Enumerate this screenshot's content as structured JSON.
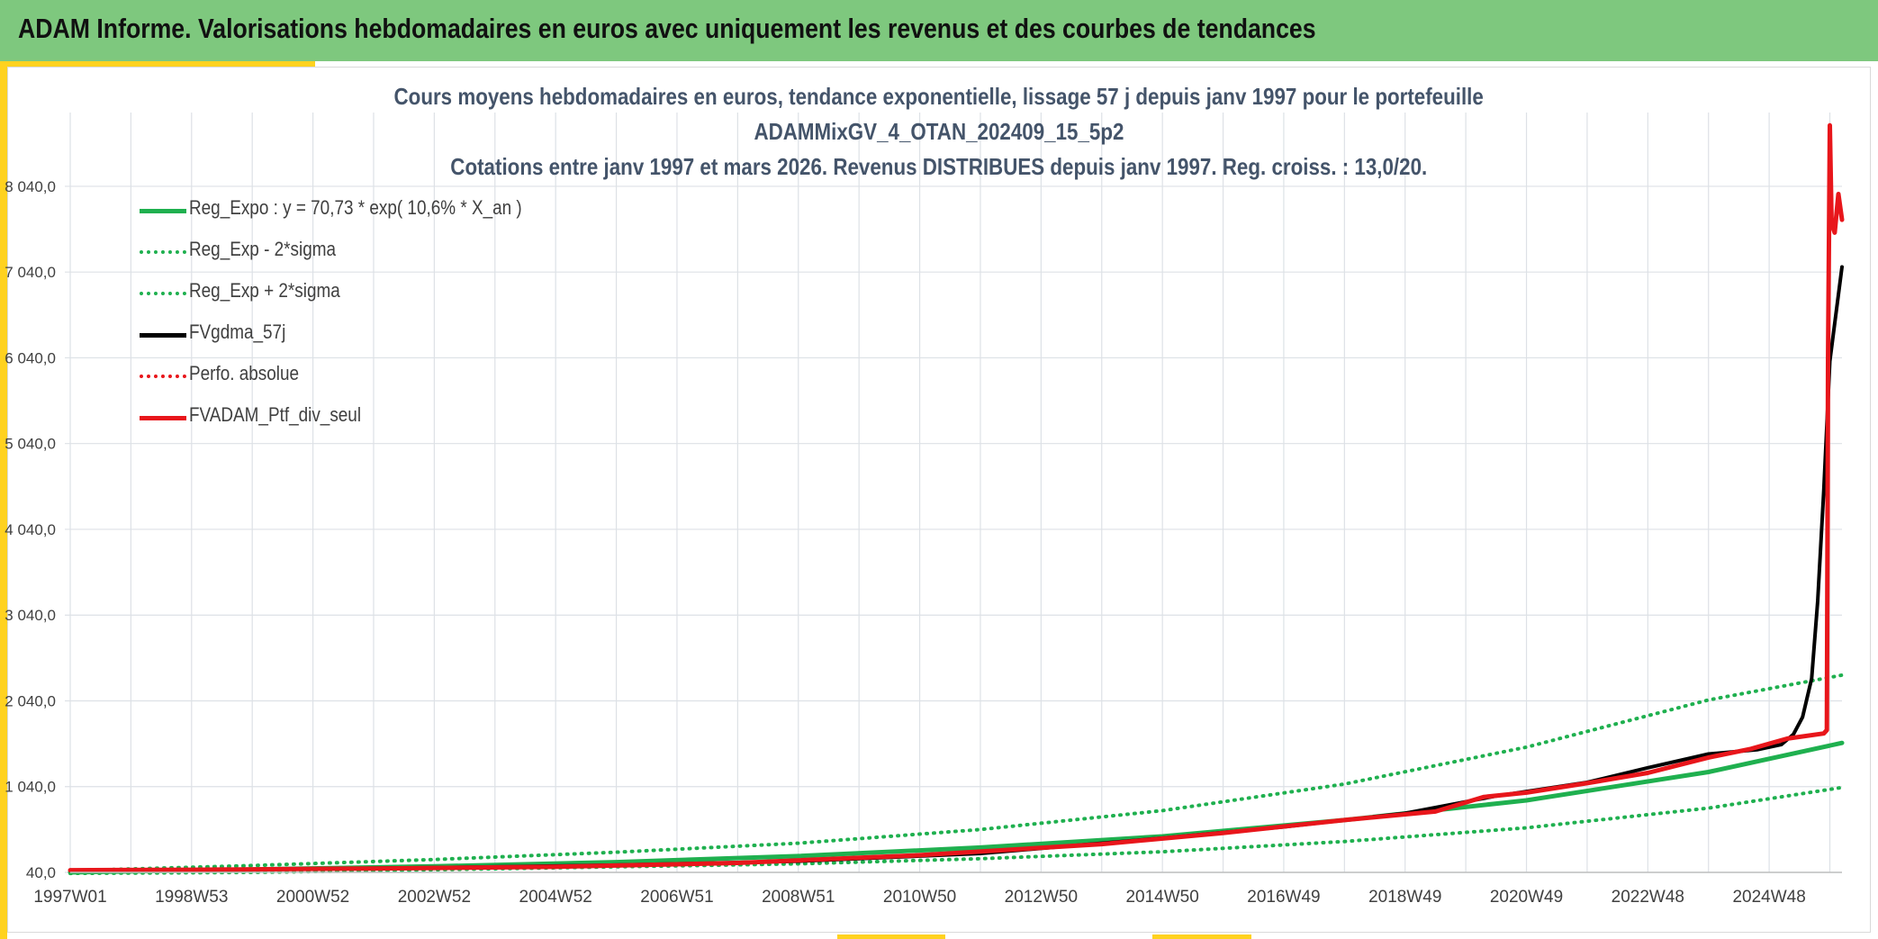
{
  "header": {
    "title": "ADAM Informe. Valorisations hebdomadaires en euros avec uniquement les revenus et des courbes de tendances"
  },
  "chart_data": {
    "type": "line",
    "title_lines": [
      "Cours moyens hebdomadaires en euros, tendance exponentielle, lissage 57 j depuis janv 1997 pour le portefeuille",
      "ADAMMixGV_4_OTAN_202409_15_5p2",
      "Cotations entre janv 1997 et mars 2026. Revenus DISTRIBUES depuis janv 1997. Reg. croiss. : 13,0/20."
    ],
    "xlabel": "",
    "ylabel": "",
    "x_range": [
      1997.0,
      2026.2
    ],
    "ylim": [
      40,
      8900
    ],
    "y_ticks": [
      {
        "value": 40,
        "label": "40,0"
      },
      {
        "value": 1040,
        "label": "1 040,0"
      },
      {
        "value": 2040,
        "label": "2 040,0"
      },
      {
        "value": 3040,
        "label": "3 040,0"
      },
      {
        "value": 4040,
        "label": "4 040,0"
      },
      {
        "value": 5040,
        "label": "5 040,0"
      },
      {
        "value": 6040,
        "label": "6 040,0"
      },
      {
        "value": 7040,
        "label": "7 040,0"
      },
      {
        "value": 8040,
        "label": "8 040,0"
      }
    ],
    "x_ticks": [
      {
        "value": 1997.0,
        "label": "1997W01"
      },
      {
        "value": 1999.0,
        "label": "1998W53"
      },
      {
        "value": 2001.0,
        "label": "2000W52"
      },
      {
        "value": 2003.0,
        "label": "2002W52"
      },
      {
        "value": 2005.0,
        "label": "2004W52"
      },
      {
        "value": 2007.0,
        "label": "2006W51"
      },
      {
        "value": 2009.0,
        "label": "2008W51"
      },
      {
        "value": 2011.0,
        "label": "2010W50"
      },
      {
        "value": 2013.0,
        "label": "2012W50"
      },
      {
        "value": 2015.0,
        "label": "2014W50"
      },
      {
        "value": 2017.0,
        "label": "2016W49"
      },
      {
        "value": 2019.0,
        "label": "2018W49"
      },
      {
        "value": 2021.0,
        "label": "2020W49"
      },
      {
        "value": 2023.0,
        "label": "2022W48"
      },
      {
        "value": 2025.0,
        "label": "2024W48"
      }
    ],
    "minor_grid_step_years": 1,
    "series": [
      {
        "name": "Reg_Exp - 2*sigma",
        "color": "#1fb04f",
        "style": "dotted",
        "points": [
          [
            1997,
            28
          ],
          [
            2000,
            40
          ],
          [
            2003,
            70
          ],
          [
            2006,
            105
          ],
          [
            2009,
            140
          ],
          [
            2012,
            200
          ],
          [
            2015,
            280
          ],
          [
            2018,
            400
          ],
          [
            2021,
            560
          ],
          [
            2024,
            790
          ],
          [
            2026.2,
            1030
          ]
        ]
      },
      {
        "name": "Reg_Exp + 2*sigma",
        "color": "#1fb04f",
        "style": "dotted",
        "points": [
          [
            1997,
            60
          ],
          [
            2000,
            120
          ],
          [
            2003,
            190
          ],
          [
            2006,
            275
          ],
          [
            2009,
            380
          ],
          [
            2012,
            540
          ],
          [
            2015,
            760
          ],
          [
            2018,
            1070
          ],
          [
            2021,
            1500
          ],
          [
            2024,
            2050
          ],
          [
            2026.2,
            2340
          ]
        ]
      },
      {
        "name": "Reg_Expo : y = 70,73 * exp( 10,6% *  X_an )",
        "color": "#1fb04f",
        "style": "solid",
        "points": [
          [
            1997,
            40
          ],
          [
            2000,
            75
          ],
          [
            2003,
            110
          ],
          [
            2006,
            160
          ],
          [
            2009,
            230
          ],
          [
            2012,
            330
          ],
          [
            2015,
            460
          ],
          [
            2018,
            650
          ],
          [
            2021,
            880
          ],
          [
            2024,
            1210
          ],
          [
            2026.2,
            1550
          ]
        ]
      },
      {
        "name": "FVgdma_57j",
        "color": "#000000",
        "style": "solid",
        "points": [
          [
            1997,
            65
          ],
          [
            2000,
            75
          ],
          [
            2003,
            95
          ],
          [
            2006,
            125
          ],
          [
            2009,
            170
          ],
          [
            2012,
            260
          ],
          [
            2015,
            440
          ],
          [
            2017,
            570
          ],
          [
            2019,
            730
          ],
          [
            2020.5,
            930
          ],
          [
            2022,
            1090
          ],
          [
            2023,
            1260
          ],
          [
            2024,
            1420
          ],
          [
            2024.8,
            1470
          ],
          [
            2025.2,
            1530
          ],
          [
            2025.4,
            1650
          ],
          [
            2025.55,
            1850
          ],
          [
            2025.7,
            2300
          ],
          [
            2025.8,
            3200
          ],
          [
            2025.9,
            4500
          ],
          [
            2026.0,
            6000
          ],
          [
            2026.2,
            7100
          ]
        ]
      },
      {
        "name": "FVADAM_Ptf_div_seul",
        "color": "#e8161b",
        "style": "solid",
        "points": [
          [
            1997,
            65
          ],
          [
            1999,
            70
          ],
          [
            2002,
            85
          ],
          [
            2005,
            105
          ],
          [
            2008,
            150
          ],
          [
            2011,
            240
          ],
          [
            2014,
            370
          ],
          [
            2016,
            500
          ],
          [
            2018,
            650
          ],
          [
            2019.5,
            750
          ],
          [
            2020.3,
            920
          ],
          [
            2021,
            970
          ],
          [
            2022,
            1080
          ],
          [
            2023,
            1200
          ],
          [
            2024,
            1380
          ],
          [
            2024.7,
            1480
          ],
          [
            2025.3,
            1600
          ],
          [
            2025.9,
            1660
          ],
          [
            2025.95,
            1700
          ],
          [
            2025.97,
            6000
          ],
          [
            2026.0,
            8750
          ],
          [
            2026.03,
            7600
          ],
          [
            2026.08,
            7500
          ],
          [
            2026.14,
            7950
          ],
          [
            2026.2,
            7650
          ]
        ]
      }
    ]
  },
  "legend": [
    {
      "label": "Reg_Expo : y = 70,73 * exp( 10,6% *  X_an )",
      "color": "#1fb04f",
      "style": "solid"
    },
    {
      "label": "Reg_Exp - 2*sigma",
      "color": "#1fb04f",
      "style": "dotted"
    },
    {
      "label": "Reg_Exp + 2*sigma",
      "color": "#1fb04f",
      "style": "dotted"
    },
    {
      "label": "FVgdma_57j",
      "color": "#000000",
      "style": "solid"
    },
    {
      "label": "Perfo. absolue",
      "color": "#e8161b",
      "style": "dotted"
    },
    {
      "label": "FVADAM_Ptf_div_seul",
      "color": "#e8161b",
      "style": "solid"
    }
  ]
}
